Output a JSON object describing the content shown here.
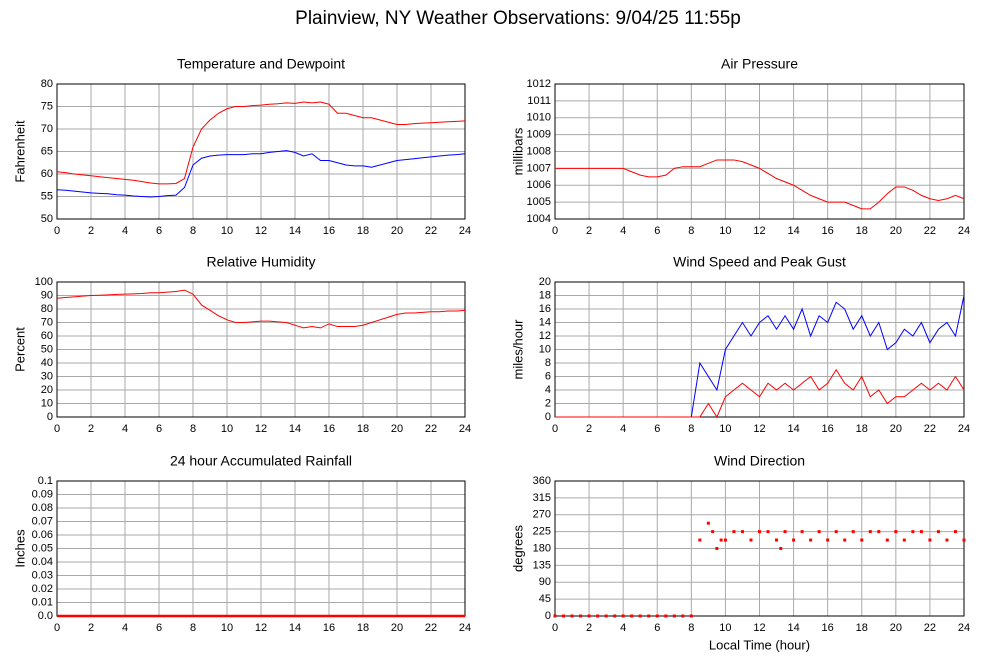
{
  "title": "Plainview, NY Weather Observations: 9/04/25 11:55p",
  "chart_data": [
    {
      "type": "line",
      "title": "Temperature and Dewpoint",
      "ylabel": "Fahrenheit",
      "x": [
        0,
        0.5,
        1,
        1.5,
        2,
        2.5,
        3,
        3.5,
        4,
        4.5,
        5,
        5.5,
        6,
        6.5,
        7,
        7.5,
        8,
        8.5,
        9,
        9.5,
        10,
        10.5,
        11,
        11.5,
        12,
        12.5,
        13,
        13.5,
        14,
        14.5,
        15,
        15.5,
        16,
        16.5,
        17,
        17.5,
        18,
        18.5,
        19,
        19.5,
        20,
        20.5,
        21,
        21.5,
        22,
        22.5,
        23,
        23.5,
        24
      ],
      "series": [
        {
          "color": "#ff0000",
          "values": [
            60.5,
            60.3,
            60,
            59.8,
            59.6,
            59.4,
            59.2,
            59,
            58.8,
            58.6,
            58.3,
            58,
            57.8,
            57.8,
            57.9,
            59,
            66,
            70,
            72,
            73.5,
            74.5,
            75,
            75,
            75.2,
            75.3,
            75.5,
            75.6,
            75.8,
            75.7,
            76,
            75.8,
            76,
            75.5,
            73.5,
            73.5,
            73,
            72.5,
            72.5,
            72,
            71.5,
            71,
            71,
            71.2,
            71.3,
            71.4,
            71.5,
            71.6,
            71.7,
            71.8
          ]
        },
        {
          "color": "#0000ff",
          "values": [
            56.5,
            56.4,
            56.2,
            56,
            55.8,
            55.7,
            55.6,
            55.4,
            55.3,
            55.1,
            55,
            54.9,
            55,
            55.2,
            55.3,
            57,
            62,
            63.5,
            64,
            64.2,
            64.3,
            64.3,
            64.3,
            64.5,
            64.5,
            64.8,
            65,
            65.2,
            64.8,
            64,
            64.5,
            63,
            63,
            62.5,
            62,
            61.8,
            61.8,
            61.5,
            62,
            62.5,
            63,
            63.2,
            63.4,
            63.6,
            63.8,
            64,
            64.2,
            64.3,
            64.5
          ]
        }
      ],
      "xlim": [
        0,
        24
      ],
      "xticks": [
        0,
        2,
        4,
        6,
        8,
        10,
        12,
        14,
        16,
        18,
        20,
        22,
        24
      ],
      "ylim": [
        50,
        80
      ],
      "yticks": [
        50,
        55,
        60,
        65,
        70,
        75,
        80
      ],
      "grid": true
    },
    {
      "type": "line",
      "title": "Air Pressure",
      "ylabel": "millibars",
      "x": [
        0,
        0.5,
        1,
        1.5,
        2,
        2.5,
        3,
        3.5,
        4,
        4.5,
        5,
        5.5,
        6,
        6.5,
        7,
        7.5,
        8,
        8.5,
        9,
        9.5,
        10,
        10.5,
        11,
        11.5,
        12,
        12.5,
        13,
        13.5,
        14,
        14.5,
        15,
        15.5,
        16,
        16.5,
        17,
        17.5,
        18,
        18.5,
        19,
        19.5,
        20,
        20.5,
        21,
        21.5,
        22,
        22.5,
        23,
        23.5,
        24
      ],
      "series": [
        {
          "color": "#ff0000",
          "values": [
            1007,
            1007,
            1007,
            1007,
            1007,
            1007,
            1007,
            1007,
            1007,
            1006.8,
            1006.6,
            1006.5,
            1006.5,
            1006.6,
            1007,
            1007.1,
            1007.1,
            1007.1,
            1007.3,
            1007.5,
            1007.5,
            1007.5,
            1007.4,
            1007.2,
            1007,
            1006.7,
            1006.4,
            1006.2,
            1006,
            1005.7,
            1005.4,
            1005.2,
            1005,
            1005,
            1005,
            1004.8,
            1004.6,
            1004.6,
            1005,
            1005.5,
            1005.9,
            1005.9,
            1005.7,
            1005.4,
            1005.2,
            1005.1,
            1005.2,
            1005.4,
            1005.2
          ]
        }
      ],
      "xlim": [
        0,
        24
      ],
      "xticks": [
        0,
        2,
        4,
        6,
        8,
        10,
        12,
        14,
        16,
        18,
        20,
        22,
        24
      ],
      "ylim": [
        1004,
        1012
      ],
      "yticks": [
        1004,
        1005,
        1006,
        1007,
        1008,
        1009,
        1010,
        1011,
        1012
      ],
      "grid": true
    },
    {
      "type": "line",
      "title": "Relative Humidity",
      "ylabel": "Percent",
      "x": [
        0,
        0.5,
        1,
        1.5,
        2,
        2.5,
        3,
        3.5,
        4,
        4.5,
        5,
        5.5,
        6,
        6.5,
        7,
        7.5,
        8,
        8.5,
        9,
        9.5,
        10,
        10.5,
        11,
        11.5,
        12,
        12.5,
        13,
        13.5,
        14,
        14.5,
        15,
        15.5,
        16,
        16.5,
        17,
        17.5,
        18,
        18.5,
        19,
        19.5,
        20,
        20.5,
        21,
        21.5,
        22,
        22.5,
        23,
        23.5,
        24
      ],
      "series": [
        {
          "color": "#ff0000",
          "values": [
            88,
            88.5,
            89,
            89.5,
            90,
            90.2,
            90.5,
            90.8,
            91,
            91.2,
            91.5,
            92,
            92,
            92.5,
            93,
            94,
            91,
            83,
            79,
            75,
            72,
            70,
            70,
            70.5,
            71,
            71,
            70.5,
            70,
            68,
            66,
            67,
            66,
            69,
            67,
            67,
            67,
            68,
            70,
            72,
            74,
            76,
            77,
            77,
            77.5,
            78,
            78,
            78.5,
            78.5,
            79
          ]
        }
      ],
      "xlim": [
        0,
        24
      ],
      "xticks": [
        0,
        2,
        4,
        6,
        8,
        10,
        12,
        14,
        16,
        18,
        20,
        22,
        24
      ],
      "ylim": [
        0,
        100
      ],
      "yticks": [
        0,
        10,
        20,
        30,
        40,
        50,
        60,
        70,
        80,
        90,
        100
      ],
      "grid": true
    },
    {
      "type": "line",
      "title": "Wind Speed and Peak Gust",
      "ylabel": "miles/hour",
      "x": [
        0,
        0.5,
        1,
        1.5,
        2,
        2.5,
        3,
        3.5,
        4,
        4.5,
        5,
        5.5,
        6,
        6.5,
        7,
        7.5,
        8,
        8.5,
        9,
        9.5,
        10,
        10.5,
        11,
        11.5,
        12,
        12.5,
        13,
        13.5,
        14,
        14.5,
        15,
        15.5,
        16,
        16.5,
        17,
        17.5,
        18,
        18.5,
        19,
        19.5,
        20,
        20.5,
        21,
        21.5,
        22,
        22.5,
        23,
        23.5,
        24
      ],
      "series": [
        {
          "color": "#0000ff",
          "values": [
            0,
            0,
            0,
            0,
            0,
            0,
            0,
            0,
            0,
            0,
            0,
            0,
            0,
            0,
            0,
            0,
            0,
            8,
            6,
            4,
            10,
            12,
            14,
            12,
            14,
            15,
            13,
            15,
            13,
            16,
            12,
            15,
            14,
            17,
            16,
            13,
            15,
            12,
            14,
            10,
            11,
            13,
            12,
            14,
            11,
            13,
            14,
            12,
            18
          ]
        },
        {
          "color": "#ff0000",
          "values": [
            0,
            0,
            0,
            0,
            0,
            0,
            0,
            0,
            0,
            0,
            0,
            0,
            0,
            0,
            0,
            0,
            0,
            0,
            2,
            0,
            3,
            4,
            5,
            4,
            3,
            5,
            4,
            5,
            4,
            5,
            6,
            4,
            5,
            7,
            5,
            4,
            6,
            3,
            4,
            2,
            3,
            3,
            4,
            5,
            4,
            5,
            4,
            6,
            4
          ]
        }
      ],
      "xlim": [
        0,
        24
      ],
      "xticks": [
        0,
        2,
        4,
        6,
        8,
        10,
        12,
        14,
        16,
        18,
        20,
        22,
        24
      ],
      "ylim": [
        0,
        20
      ],
      "yticks": [
        0,
        2,
        4,
        6,
        8,
        10,
        12,
        14,
        16,
        18,
        20
      ],
      "grid": true
    },
    {
      "type": "line",
      "title": "24 hour Accumulated Rainfall",
      "ylabel": "Inches",
      "x": [
        0,
        24
      ],
      "series": [
        {
          "color": "#ff0000",
          "values": [
            0,
            0
          ]
        }
      ],
      "xlim": [
        0,
        24
      ],
      "xticks": [
        0,
        2,
        4,
        6,
        8,
        10,
        12,
        14,
        16,
        18,
        20,
        22,
        24
      ],
      "ylim": [
        0,
        0.1
      ],
      "yticks": [
        {
          "value": 0,
          "label": "0.0"
        },
        0.01,
        0.02,
        0.03,
        0.04,
        0.05,
        0.06,
        0.07,
        0.08,
        0.09,
        0.1
      ],
      "grid": true
    },
    {
      "type": "scatter",
      "title": "Wind Direction",
      "ylabel": "degrees",
      "xlabel": "Local Time (hour)",
      "x": [
        0,
        0.5,
        1,
        1.5,
        2,
        2.5,
        3,
        3.5,
        4,
        4.5,
        5,
        5.5,
        6,
        6.5,
        7,
        7.5,
        8,
        8.5,
        9,
        9.25,
        9.5,
        9.75,
        10,
        10.5,
        11,
        11.5,
        12,
        12.5,
        13,
        13.25,
        13.5,
        14,
        14.5,
        15,
        15.5,
        16,
        16.5,
        17,
        17.5,
        18,
        18.5,
        19,
        19.5,
        20,
        20.5,
        21,
        21.5,
        22,
        22.5,
        23,
        23.5,
        24
      ],
      "series": [
        {
          "color": "#ff0000",
          "values": [
            0,
            0,
            0,
            0,
            0,
            0,
            0,
            0,
            0,
            0,
            0,
            0,
            0,
            0,
            0,
            0,
            0,
            202.5,
            247.5,
            225,
            180,
            202.5,
            202.5,
            225,
            225,
            202.5,
            225,
            225,
            202.5,
            180,
            225,
            202.5,
            225,
            202.5,
            225,
            202.5,
            225,
            202.5,
            225,
            202.5,
            225,
            225,
            202.5,
            225,
            202.5,
            225,
            225,
            202.5,
            225,
            202.5,
            225,
            202.5
          ]
        }
      ],
      "xlim": [
        0,
        24
      ],
      "xticks": [
        0,
        2,
        4,
        6,
        8,
        10,
        12,
        14,
        16,
        18,
        20,
        22,
        24
      ],
      "ylim": [
        0,
        360
      ],
      "yticks": [
        0,
        45,
        90,
        135,
        180,
        225,
        270,
        315,
        360
      ],
      "grid": true
    }
  ]
}
